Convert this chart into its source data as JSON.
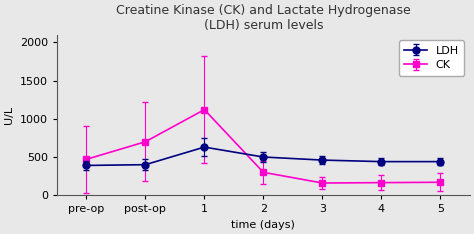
{
  "title_line1": "Creatine Kinase (CK) and Lactate Hydrogenase",
  "title_line2": "(LDH) serum levels",
  "xlabel": "time (days)",
  "ylabel": "U/L",
  "x_labels": [
    "pre-op",
    "post-op",
    "1",
    "2",
    "3",
    "4",
    "5"
  ],
  "x_positions": [
    0,
    1,
    2,
    3,
    4,
    5,
    6
  ],
  "ldh_values": [
    390,
    400,
    630,
    500,
    460,
    440,
    440
  ],
  "ldh_errors": [
    60,
    70,
    120,
    60,
    50,
    50,
    50
  ],
  "ck_values": [
    470,
    700,
    1120,
    300,
    160,
    165,
    170
  ],
  "ck_errors": [
    440,
    520,
    700,
    150,
    80,
    100,
    120
  ],
  "ldh_color": "#000080",
  "ck_color": "#FF00CC",
  "ylim": [
    0,
    2100
  ],
  "yticks": [
    0,
    500,
    1000,
    1500,
    2000
  ],
  "legend_labels": [
    "LDH",
    "CK"
  ],
  "bg_color": "#e8e8e8",
  "plot_bg_color": "#e8e8e8",
  "title_fontsize": 9,
  "axis_fontsize": 8,
  "tick_fontsize": 8,
  "legend_fontsize": 8,
  "marker_size": 5,
  "linewidth": 1.2,
  "capsize": 2,
  "xlim": [
    -0.5,
    6.5
  ]
}
